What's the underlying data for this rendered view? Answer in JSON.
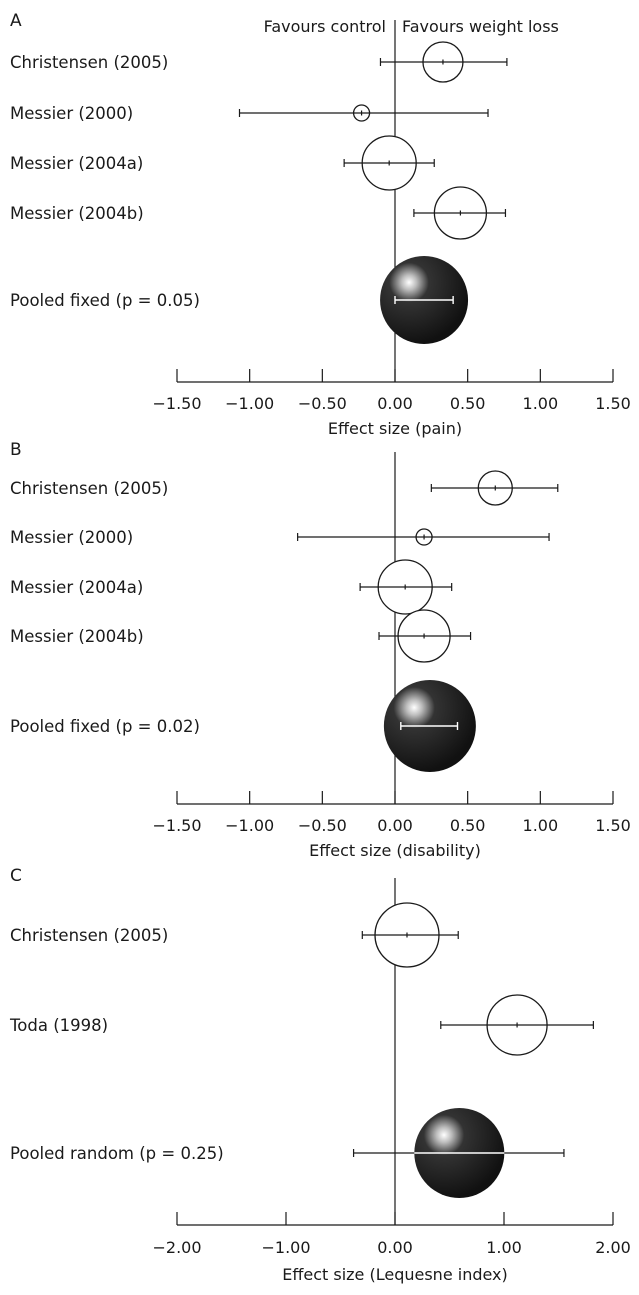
{
  "chart_data": [
    {
      "type": "forest",
      "panel": "A",
      "xlabel": "Effect size (pain)",
      "xlim": [
        -1.5,
        1.5
      ],
      "ticks": [
        -1.5,
        -1.0,
        -0.5,
        0.0,
        0.5,
        1.0,
        1.5
      ],
      "tick_labels": [
        "−1.50",
        "−1.00",
        "−0.50",
        "0.00",
        "0.50",
        "1.00",
        "1.50"
      ],
      "favours_left": "Favours control",
      "favours_right": "Favours weight loss",
      "studies": [
        {
          "label": "Christensen (2005)",
          "estimate": 0.33,
          "ci_low": -0.1,
          "ci_high": 0.77,
          "weight": 0.36,
          "pooled": false
        },
        {
          "label": "Messier (2000)",
          "estimate": -0.23,
          "ci_low": -1.07,
          "ci_high": 0.64,
          "weight": 0.1,
          "pooled": false
        },
        {
          "label": "Messier (2004a)",
          "estimate": -0.04,
          "ci_low": -0.35,
          "ci_high": 0.27,
          "weight": 0.54,
          "pooled": false
        },
        {
          "label": "Messier (2004b)",
          "estimate": 0.45,
          "ci_low": 0.13,
          "ci_high": 0.76,
          "weight": 0.5,
          "pooled": false
        },
        {
          "label": "Pooled fixed (p = 0.05)",
          "estimate": 0.2,
          "ci_low": 0.0,
          "ci_high": 0.4,
          "weight": 1.0,
          "pooled": true
        }
      ]
    },
    {
      "type": "forest",
      "panel": "B",
      "xlabel": "Effect size (disability)",
      "xlim": [
        -1.5,
        1.5
      ],
      "ticks": [
        -1.5,
        -1.0,
        -0.5,
        0.0,
        0.5,
        1.0,
        1.5
      ],
      "tick_labels": [
        "−1.50",
        "−1.00",
        "−0.50",
        "0.00",
        "0.50",
        "1.00",
        "1.50"
      ],
      "studies": [
        {
          "label": "Christensen (2005)",
          "estimate": 0.69,
          "ci_low": 0.25,
          "ci_high": 1.12,
          "weight": 0.36,
          "pooled": false
        },
        {
          "label": "Messier (2000)",
          "estimate": 0.2,
          "ci_low": -0.67,
          "ci_high": 1.06,
          "weight": 0.1,
          "pooled": false
        },
        {
          "label": "Messier (2004a)",
          "estimate": 0.07,
          "ci_low": -0.24,
          "ci_high": 0.39,
          "weight": 0.54,
          "pooled": false
        },
        {
          "label": "Messier (2004b)",
          "estimate": 0.2,
          "ci_low": -0.11,
          "ci_high": 0.52,
          "weight": 0.5,
          "pooled": false
        },
        {
          "label": "Pooled fixed (p = 0.02)",
          "estimate": 0.24,
          "ci_low": 0.04,
          "ci_high": 0.43,
          "weight": 1.0,
          "pooled": true
        }
      ]
    },
    {
      "type": "forest",
      "panel": "C",
      "xlabel": "Effect size (Lequesne index)",
      "xlim": [
        -2.0,
        2.0
      ],
      "ticks": [
        -2.0,
        -1.0,
        0.0,
        1.0,
        2.0
      ],
      "tick_labels": [
        "−2.00",
        "−1.00",
        "0.00",
        "1.00",
        "2.00"
      ],
      "studies": [
        {
          "label": "Christensen (2005)",
          "estimate": 0.11,
          "ci_low": -0.3,
          "ci_high": 0.58,
          "weight": 0.5,
          "pooled": false
        },
        {
          "label": "Toda (1998)",
          "estimate": 1.12,
          "ci_low": 0.42,
          "ci_high": 1.82,
          "weight": 0.5,
          "pooled": false
        },
        {
          "label": "Pooled random (p = 0.25)",
          "estimate": 0.59,
          "ci_low": -0.38,
          "ci_high": 1.55,
          "weight": 1.0,
          "pooled": true
        }
      ]
    }
  ]
}
